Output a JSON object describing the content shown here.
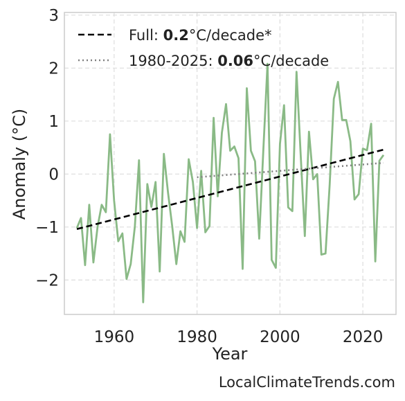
{
  "chart_data": {
    "type": "line",
    "xlabel": "Year",
    "ylabel": "Anomaly (°C)",
    "xlim": [
      1948,
      2028
    ],
    "ylim": [
      -2.65,
      3.05
    ],
    "xticks": [
      1960,
      1980,
      2000,
      2020
    ],
    "yticks": [
      -2,
      -1,
      0,
      1,
      2,
      3
    ],
    "ytick_labels": [
      "−2",
      "−1",
      "0",
      "1",
      "2",
      "3"
    ],
    "grid": true,
    "legend_position": "top-left",
    "series": [
      {
        "color": "#8aba86",
        "x": [
          1951,
          1952,
          1953,
          1954,
          1955,
          1956,
          1957,
          1958,
          1959,
          1960,
          1961,
          1962,
          1963,
          1964,
          1965,
          1966,
          1967,
          1968,
          1969,
          1970,
          1971,
          1972,
          1973,
          1974,
          1975,
          1976,
          1977,
          1978,
          1979,
          1980,
          1981,
          1982,
          1983,
          1984,
          1985,
          1986,
          1987,
          1988,
          1989,
          1990,
          1991,
          1992,
          1993,
          1994,
          1995,
          1996,
          1997,
          1998,
          1999,
          2000,
          2001,
          2002,
          2003,
          2004,
          2005,
          2006,
          2007,
          2008,
          2009,
          2010,
          2011,
          2012,
          2013,
          2014,
          2015,
          2016,
          2017,
          2018,
          2019,
          2020,
          2021,
          2022,
          2023,
          2024,
          2025
        ],
        "y": [
          -1.02,
          -0.83,
          -1.72,
          -0.58,
          -1.67,
          -1.0,
          -0.58,
          -0.72,
          0.75,
          -0.5,
          -1.27,
          -1.12,
          -1.98,
          -1.7,
          -0.99,
          0.26,
          -2.42,
          -0.19,
          -0.62,
          -0.15,
          -1.84,
          0.38,
          -0.35,
          -0.98,
          -1.7,
          -1.08,
          -1.28,
          0.28,
          -0.15,
          -1.02,
          0.06,
          -1.1,
          -0.98,
          1.06,
          -0.42,
          0.78,
          1.32,
          0.44,
          0.52,
          0.3,
          -1.79,
          1.62,
          0.44,
          0.24,
          -1.22,
          0.46,
          2.08,
          -1.62,
          -1.77,
          0.57,
          1.3,
          -0.63,
          -0.7,
          1.93,
          0.37,
          -1.17,
          0.8,
          -0.1,
          0.0,
          -1.52,
          -1.5,
          -0.2,
          1.42,
          1.74,
          1.02,
          1.02,
          0.62,
          -0.48,
          -0.38,
          0.48,
          0.45,
          0.95,
          -1.65,
          0.25,
          0.36
        ]
      },
      {
        "name_prefix": "Full: ",
        "name_value": "0.2",
        "name_suffix": "°C/decade*",
        "color": "#000000",
        "style": "dashed",
        "x": [
          1951,
          2025
        ],
        "y": [
          -1.04,
          0.46
        ]
      },
      {
        "name_prefix": "1980-2025: ",
        "name_value": "0.06",
        "name_suffix": "°C/decade",
        "color": "#808080",
        "style": "dotted",
        "x": [
          1980,
          2025
        ],
        "y": [
          -0.06,
          0.21
        ]
      }
    ]
  },
  "watermark": "LocalClimateTrends.com"
}
